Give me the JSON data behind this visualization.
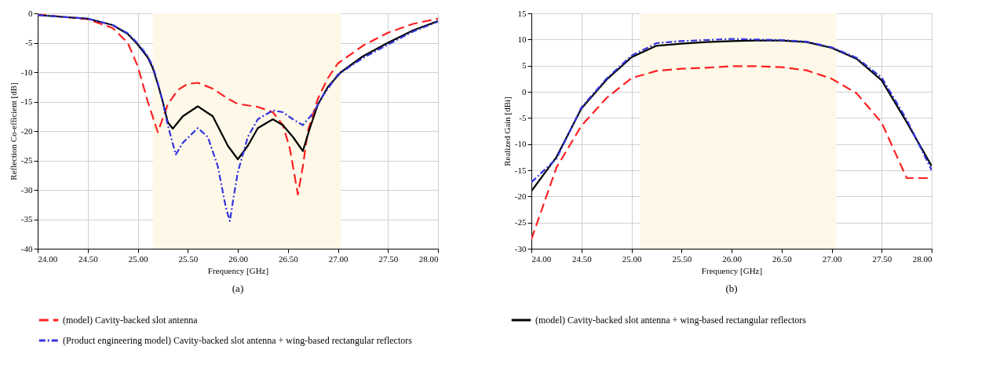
{
  "chart_data": [
    {
      "type": "line",
      "title": "(a)",
      "xlabel": "Frequency [GHz]",
      "ylabel": "Reflection Co-efficient [dB]",
      "xlim": [
        24,
        28
      ],
      "ylim": [
        -40,
        0
      ],
      "xticks": [
        {
          "value": 24,
          "label": "24.00"
        },
        {
          "value": 24.5,
          "label": "24.50"
        },
        {
          "value": 25,
          "label": "25.00"
        },
        {
          "value": 25.5,
          "label": "25.50"
        },
        {
          "value": 26,
          "label": "26.00"
        },
        {
          "value": 26.5,
          "label": "26.50"
        },
        {
          "value": 27,
          "label": "27.00"
        },
        {
          "value": 27.5,
          "label": "27.50"
        },
        {
          "value": 28,
          "label": "28.00"
        }
      ],
      "yticks": [
        -40,
        -35,
        -30,
        -25,
        -20,
        -15,
        -10,
        -5,
        0
      ],
      "grid": true,
      "legend": "bottom",
      "marker": "none",
      "bands": [
        {
          "axis": "x",
          "from": 25.15,
          "to": 27.03,
          "color": "#fdf8e8"
        }
      ],
      "series": [
        {
          "name": "(model) Cavity-backed slot antenna",
          "color": "#ff2020",
          "line_style": "dashed",
          "x": [
            24,
            24.5,
            24.75,
            24.9,
            25.0,
            25.1,
            25.2,
            25.3,
            25.4,
            25.5,
            25.6,
            25.75,
            25.9,
            26.0,
            26.2,
            26.35,
            26.45,
            26.52,
            26.6,
            26.65,
            26.7,
            26.8,
            26.9,
            27.0,
            27.25,
            27.5,
            27.75,
            28
          ],
          "values": [
            -0.2,
            -1,
            -2.5,
            -5,
            -9,
            -15,
            -20.2,
            -15.5,
            -13,
            -12,
            -11.8,
            -12.8,
            -14.5,
            -15.4,
            -15.9,
            -16.8,
            -19,
            -23,
            -30.8,
            -26,
            -20,
            -14.5,
            -11,
            -8.5,
            -5.5,
            -3.3,
            -1.8,
            -0.9
          ]
        },
        {
          "name": "(model) Cavity-backed slot antenna + wing-based rectangular reflectors",
          "color": "#000000",
          "line_style": "solid",
          "x": [
            24,
            24.5,
            24.75,
            24.9,
            25.0,
            25.1,
            25.15,
            25.2,
            25.25,
            25.3,
            25.35,
            25.45,
            25.6,
            25.75,
            25.9,
            26.0,
            26.1,
            26.2,
            26.35,
            26.45,
            26.55,
            26.65,
            26.72,
            26.8,
            26.9,
            27.03,
            27.25,
            27.5,
            27.75,
            28
          ],
          "values": [
            -0.3,
            -0.9,
            -2,
            -3.5,
            -5.3,
            -7.5,
            -9.3,
            -12,
            -15,
            -18.5,
            -19.6,
            -17.5,
            -15.8,
            -17.5,
            -22.5,
            -24.8,
            -22.5,
            -19.5,
            -18,
            -19,
            -21,
            -23.4,
            -19.5,
            -15.5,
            -12.5,
            -10,
            -7.3,
            -5,
            -2.9,
            -1.3
          ]
        },
        {
          "name": "(Product engineering model) Cavity-backed slot antenna + wing-based rectangular reflectors",
          "color": "#3333dd",
          "line_style": "dotted",
          "x": [
            24,
            24.5,
            24.75,
            24.9,
            25.0,
            25.1,
            25.15,
            25.2,
            25.25,
            25.3,
            25.38,
            25.45,
            25.6,
            25.7,
            25.8,
            25.88,
            25.92,
            25.96,
            26.0,
            26.1,
            26.2,
            26.35,
            26.45,
            26.55,
            26.65,
            26.75,
            26.85,
            27.0,
            27.25,
            27.5,
            27.75,
            28
          ],
          "values": [
            -0.3,
            -0.9,
            -2,
            -3.4,
            -5.1,
            -7.3,
            -9,
            -11.8,
            -15,
            -19,
            -24,
            -22,
            -19.5,
            -21,
            -26,
            -33,
            -35.3,
            -31,
            -27,
            -21,
            -18,
            -16.5,
            -16.8,
            -18,
            -19,
            -17,
            -14,
            -10.4,
            -7.6,
            -5.3,
            -3.1,
            -1.4
          ]
        }
      ]
    },
    {
      "type": "line",
      "title": "(b)",
      "xlabel": "Frequency [GHz]",
      "ylabel": "Realized Gain [dBi]",
      "xlim": [
        24,
        28
      ],
      "ylim": [
        -30,
        15
      ],
      "xticks": [
        {
          "value": 24,
          "label": "24.00"
        },
        {
          "value": 24.5,
          "label": "24.50"
        },
        {
          "value": 25,
          "label": "25.00"
        },
        {
          "value": 25.5,
          "label": "25.50"
        },
        {
          "value": 26,
          "label": "26.00"
        },
        {
          "value": 26.5,
          "label": "26.50"
        },
        {
          "value": 27,
          "label": "27.00"
        },
        {
          "value": 27.5,
          "label": "27.50"
        },
        {
          "value": 28,
          "label": "28.00"
        }
      ],
      "yticks": [
        -30,
        -25,
        -20,
        -15,
        -10,
        -5,
        0,
        5,
        10,
        15
      ],
      "grid": true,
      "legend": "bottom",
      "marker": "none",
      "bands": [
        {
          "axis": "x",
          "from": 25.09,
          "to": 27.05,
          "color": "#fdf8e8"
        }
      ],
      "x": [
        24,
        24.25,
        24.5,
        24.75,
        25,
        25.25,
        25.5,
        25.75,
        26,
        26.25,
        26.5,
        26.75,
        27,
        27.25,
        27.5,
        27.75,
        28
      ],
      "series": [
        {
          "name": "(model) Cavity-backed slot antenna",
          "color": "#ff2020",
          "line_style": "dashed",
          "values": [
            -28.2,
            -14.5,
            -6.5,
            -1.2,
            2.6,
            4,
            4.4,
            4.6,
            4.9,
            4.9,
            4.7,
            4.1,
            2.5,
            -0.3,
            -5.9,
            -16.5,
            -16.5
          ]
        },
        {
          "name": "(model) Cavity-backed slot antenna + wing-based rectangular reflectors",
          "color": "#000000",
          "line_style": "solid",
          "values": [
            -19,
            -12.5,
            -3.2,
            2.3,
            6.6,
            8.8,
            9.2,
            9.5,
            9.7,
            9.8,
            9.8,
            9.5,
            8.4,
            6.3,
            2.2,
            -5.8,
            -14.2
          ]
        },
        {
          "name": "(Product engineering model) Cavity-backed slot antenna + wing-based rectangular reflectors",
          "color": "#3333dd",
          "line_style": "dotted",
          "values": [
            -17.3,
            -12.8,
            -3,
            2.5,
            6.9,
            9.3,
            9.7,
            9.9,
            10.1,
            10,
            9.9,
            9.6,
            8.5,
            6.5,
            2.7,
            -5.3,
            -15
          ]
        }
      ]
    }
  ]
}
